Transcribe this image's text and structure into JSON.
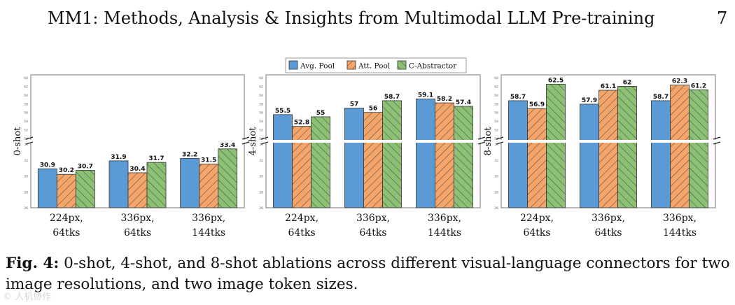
{
  "header": {
    "title": "MM1: Methods, Analysis & Insights from Multimodal LLM Pre-training",
    "page_number": "7"
  },
  "legend": [
    "Avg. Pool",
    "Att. Pool",
    "C-Abstractor"
  ],
  "colors": {
    "avg_pool": "#5b9bd5",
    "att_pool": "#f4a66a",
    "c_abstractor": "#8cc175"
  },
  "chart_data": [
    {
      "type": "bar",
      "ylabel": "0-shot",
      "categories": [
        "224px,\n64tks",
        "336px,\n64tks",
        "336px,\n144tks"
      ],
      "series": [
        {
          "name": "Avg. Pool",
          "values": [
            30.9,
            31.9,
            32.2
          ]
        },
        {
          "name": "Att. Pool",
          "values": [
            30.2,
            30.4,
            31.5
          ]
        },
        {
          "name": "C-Abstractor",
          "values": [
            30.7,
            31.7,
            33.4
          ]
        }
      ],
      "ylim_lower": [
        26,
        34
      ],
      "ylim_upper": [
        50,
        64
      ]
    },
    {
      "type": "bar",
      "ylabel": "4-shot",
      "categories": [
        "224px,\n64tks",
        "336px,\n64tks",
        "336px,\n144tks"
      ],
      "series": [
        {
          "name": "Avg. Pool",
          "values": [
            55.5,
            57,
            59.1
          ]
        },
        {
          "name": "Att. Pool",
          "values": [
            52.8,
            56,
            58.2
          ]
        },
        {
          "name": "C-Abstractor",
          "values": [
            55,
            58.7,
            57.4
          ]
        }
      ],
      "ylim_lower": [
        26,
        34
      ],
      "ylim_upper": [
        50,
        64
      ]
    },
    {
      "type": "bar",
      "ylabel": "8-shot",
      "categories": [
        "224px,\n64tks",
        "336px,\n64tks",
        "336px,\n144tks"
      ],
      "series": [
        {
          "name": "Avg. Pool",
          "values": [
            58.7,
            57.9,
            58.7
          ]
        },
        {
          "name": "Att. Pool",
          "values": [
            56.9,
            61.1,
            62.3
          ]
        },
        {
          "name": "C-Abstractor",
          "values": [
            62.5,
            62,
            61.2
          ]
        }
      ],
      "ylim_lower": [
        26,
        34
      ],
      "ylim_upper": [
        50,
        64
      ]
    }
  ],
  "caption": {
    "label": "Fig. 4:",
    "text": " 0-shot, 4-shot, and 8-shot ablations across different visual-language connectors for two image resolutions, and two image token sizes."
  },
  "watermark": "© 人机协作"
}
